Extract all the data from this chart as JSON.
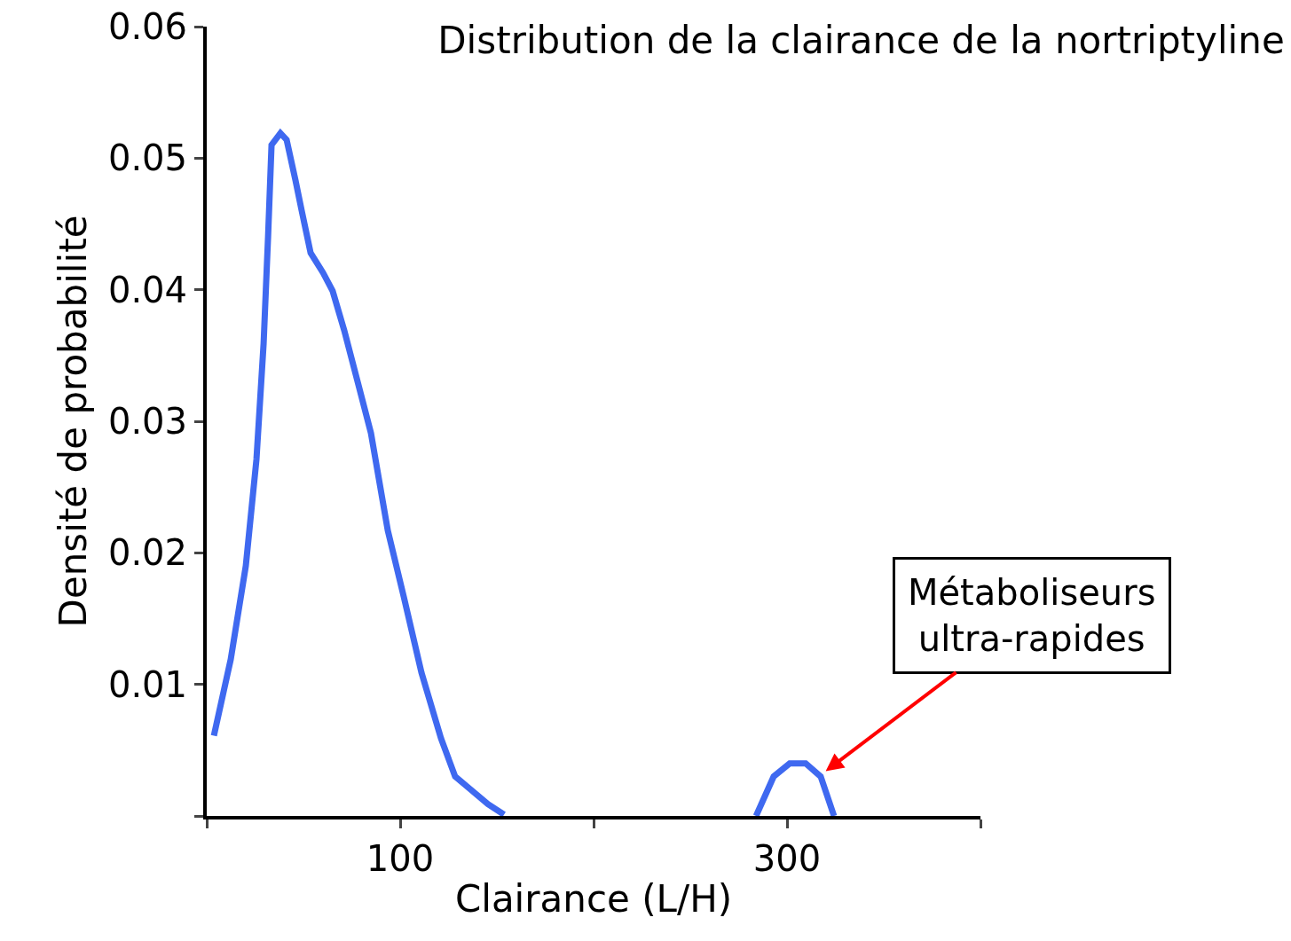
{
  "chart_data": {
    "type": "line",
    "title": "Distribution de la clairance de la nortriptyline",
    "xlabel": "Clairance (L/H)",
    "ylabel": "Densité de probabilité",
    "x": [
      3.7,
      12.4,
      20.2,
      25.7,
      29.4,
      31.7,
      33.5,
      38.1,
      41.3,
      45.9,
      49.1,
      53.7,
      60.1,
      65.1,
      71.1,
      78.9,
      84.9,
      93.6,
      101.8,
      111,
      121.1,
      128.4,
      134.9,
      145.4,
      153.7,
      220,
      284,
      293.1,
      301.4,
      309.6,
      317.4,
      324.3
    ],
    "series": [
      {
        "color": "#3f69f0",
        "values": [
          0.0061,
          0.0119,
          0.019,
          0.0271,
          0.0359,
          0.044,
          0.051,
          0.0519,
          0.0514,
          0.0483,
          0.046,
          0.0428,
          0.0413,
          0.0399,
          0.0369,
          0.0325,
          0.0291,
          0.0217,
          0.0167,
          0.0109,
          0.0059,
          0.003,
          0.0022,
          0.0009,
          0.0001,
          null,
          0,
          0.003,
          0.004,
          0.004,
          0.003,
          0
        ]
      }
    ],
    "xlim": [
      0,
      400
    ],
    "xticks": [
      {
        "value": 0,
        "label": null
      },
      100,
      {
        "value": 200,
        "label": null
      },
      300,
      {
        "value": 400,
        "label": null
      }
    ],
    "ylim": [
      0,
      0.06
    ],
    "yticks": [
      {
        "value": 0,
        "label": null
      },
      0.01,
      0.02,
      0.03,
      0.04,
      0.05,
      0.06
    ],
    "grid": false,
    "marker": "none",
    "line_style": "solid",
    "annotations": [
      {
        "text": "Métaboliseurs\nultra-rapides",
        "x": 320,
        "y": 0.0034
      }
    ]
  }
}
